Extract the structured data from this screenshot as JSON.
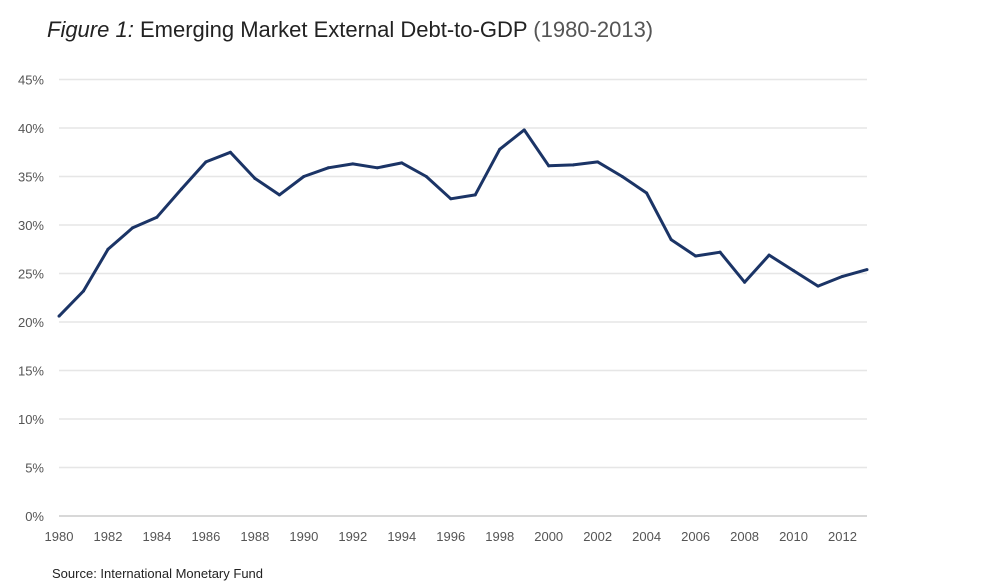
{
  "title": {
    "figure": "Figure 1:",
    "main": "Emerging Market External Debt-to-GDP",
    "range": "(1980-2013)"
  },
  "source": "Source: International Monetary Fund",
  "chart_data": {
    "type": "line",
    "title": "Figure 1: Emerging Market External Debt-to-GDP (1980-2013)",
    "xlabel": "",
    "ylabel": "",
    "ylim": [
      0,
      45
    ],
    "xlim": [
      1980,
      2013
    ],
    "grid": true,
    "line_color": "#1b3466",
    "yticks": [
      "0%",
      "5%",
      "10%",
      "15%",
      "20%",
      "25%",
      "30%",
      "35%",
      "40%",
      "45%"
    ],
    "xticks": [
      "1980",
      "1982",
      "1984",
      "1986",
      "1988",
      "1990",
      "1992",
      "1994",
      "1996",
      "1998",
      "2000",
      "2002",
      "2004",
      "2006",
      "2008",
      "2010",
      "2012"
    ],
    "x": [
      1980,
      1981,
      1982,
      1983,
      1984,
      1985,
      1986,
      1987,
      1988,
      1989,
      1990,
      1991,
      1992,
      1993,
      1994,
      1995,
      1996,
      1997,
      1998,
      1999,
      2000,
      2001,
      2002,
      2003,
      2004,
      2005,
      2006,
      2007,
      2008,
      2009,
      2010,
      2011,
      2012,
      2013
    ],
    "series": [
      {
        "name": "External Debt-to-GDP (%)",
        "values": [
          20.6,
          23.2,
          27.5,
          29.7,
          30.8,
          33.7,
          36.5,
          37.5,
          34.8,
          33.1,
          35.0,
          35.9,
          36.3,
          35.9,
          36.4,
          35.0,
          32.7,
          33.1,
          37.8,
          39.8,
          36.1,
          36.2,
          36.5,
          35.0,
          33.3,
          28.5,
          26.8,
          27.2,
          24.1,
          26.9,
          25.3,
          23.7,
          24.7,
          25.4
        ]
      }
    ]
  }
}
